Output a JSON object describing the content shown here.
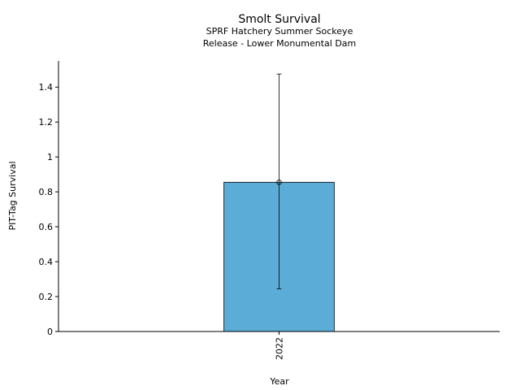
{
  "chart_data": {
    "type": "bar",
    "title": "Smolt Survival",
    "subtitle_lines": [
      "SPRF Hatchery Summer Sockeye",
      "Release - Lower Monumental Dam"
    ],
    "xlabel": "Year",
    "ylabel": "PIT-Tag Survival",
    "categories": [
      "2022"
    ],
    "values": [
      0.855
    ],
    "error_lower": [
      0.245
    ],
    "error_upper": [
      1.475
    ],
    "ylim": [
      0,
      1.55
    ],
    "yticks": [
      0,
      0.2,
      0.4,
      0.6,
      0.8,
      1,
      1.2,
      1.4
    ],
    "ytick_labels": [
      "0",
      "0.2",
      "0.4",
      "0.6",
      "0.8",
      "1",
      "1.2",
      "1.4"
    ],
    "bar_color": "#5bacd6",
    "grid": false,
    "legend": "none"
  }
}
